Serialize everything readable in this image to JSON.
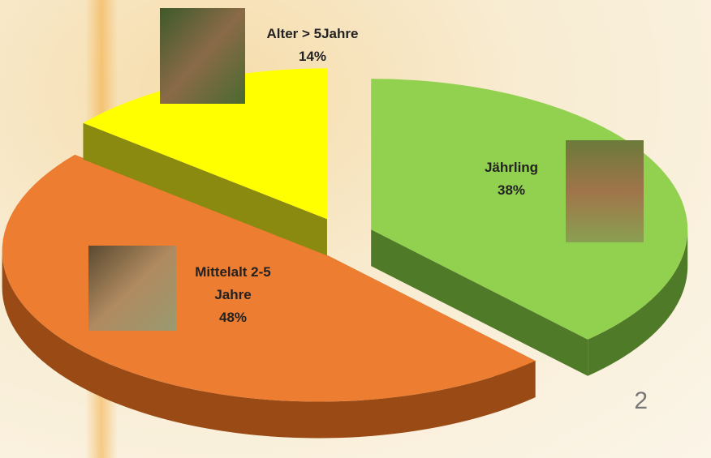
{
  "chart_data": {
    "type": "pie",
    "categories": [
      "Jährling",
      "Mittelalt 2-5 Jahre",
      "Alter > 5Jahre"
    ],
    "values": [
      38,
      48,
      14
    ],
    "value_labels": [
      "38%",
      "48%",
      "14%"
    ],
    "colors": [
      "#92d050",
      "#ed7d31",
      "#ffff00"
    ],
    "side_colors": [
      "#4f7a28",
      "#9a4a14",
      "#8a8a10"
    ]
  },
  "slide_number": "2"
}
